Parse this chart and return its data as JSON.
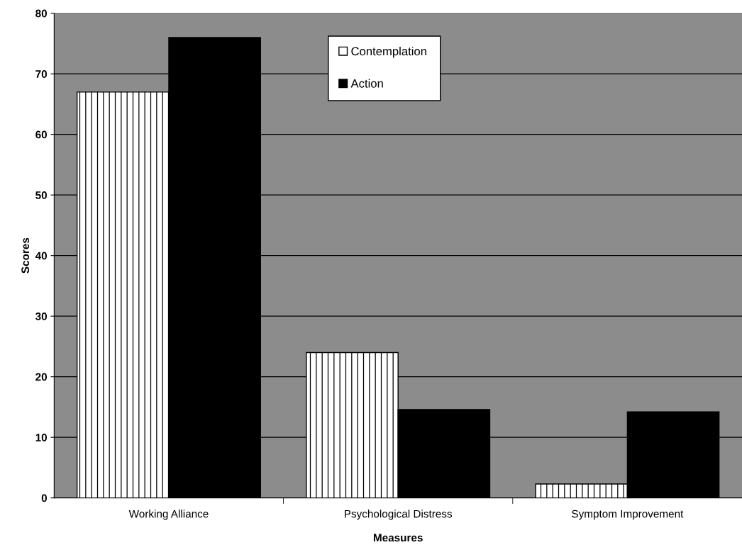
{
  "chart_data": {
    "type": "bar",
    "xlabel": "Measures",
    "ylabel": "Scores",
    "categories": [
      "Working Alliance",
      "Psychological Distress",
      "Symptom Improvement"
    ],
    "series": [
      {
        "name": "Contemplation",
        "color": "#ffffff",
        "values": [
          67,
          24,
          2.3
        ]
      },
      {
        "name": "Action",
        "color": "#000000",
        "values": [
          76,
          14.6,
          14.2
        ]
      }
    ],
    "ylim": [
      0,
      80
    ],
    "yticks": [
      0,
      10,
      20,
      30,
      40,
      50,
      60,
      70,
      80
    ],
    "grid": "y",
    "legend": "top"
  }
}
